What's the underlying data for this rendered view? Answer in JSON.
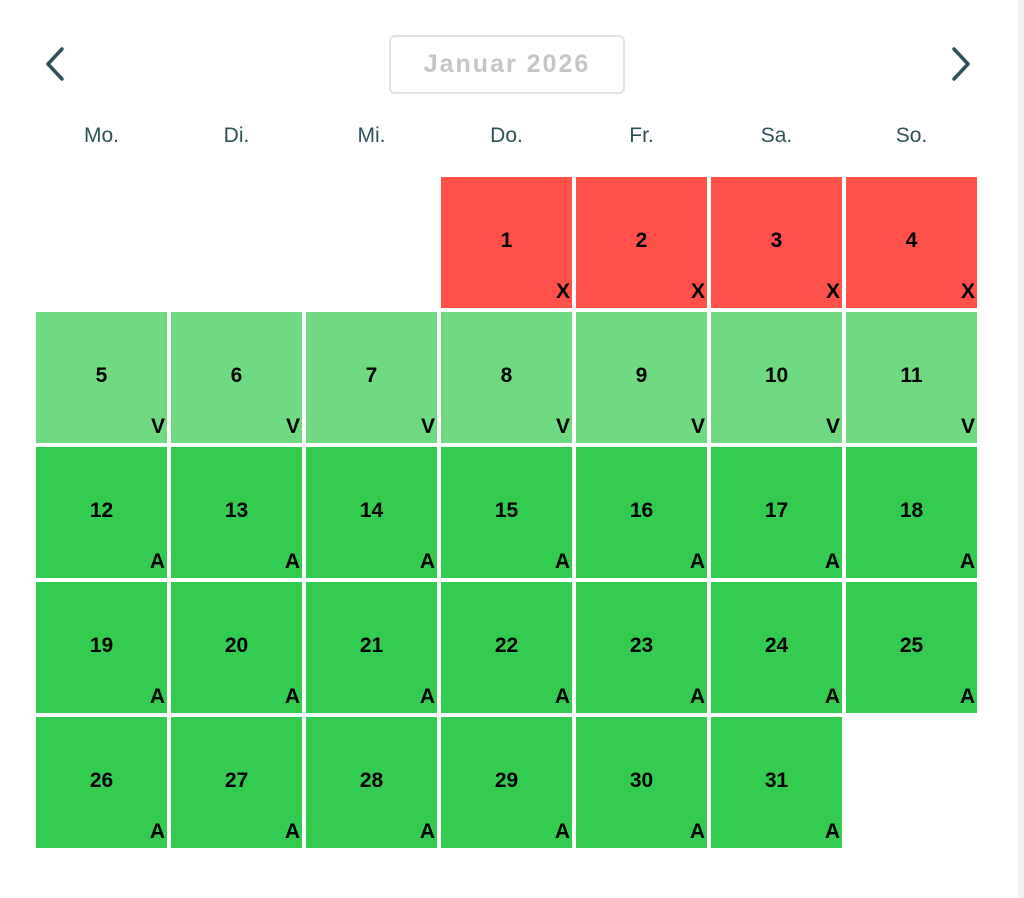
{
  "calendar": {
    "month_label": "Januar 2026",
    "weekdays": [
      "Mo.",
      "Di.",
      "Mi.",
      "Do.",
      "Fr.",
      "Sa.",
      "So."
    ],
    "leading_blank_days": 3,
    "colors": {
      "X": "#ff5149",
      "V": "#6fda80",
      "A": "#34cc50",
      "nav_arrow": "#2e5157",
      "weekday_text": "#2e5157",
      "month_label_text": "#c5c5c5"
    },
    "days": [
      {
        "day": "1",
        "status": "X"
      },
      {
        "day": "2",
        "status": "X"
      },
      {
        "day": "3",
        "status": "X"
      },
      {
        "day": "4",
        "status": "X"
      },
      {
        "day": "5",
        "status": "V"
      },
      {
        "day": "6",
        "status": "V"
      },
      {
        "day": "7",
        "status": "V"
      },
      {
        "day": "8",
        "status": "V"
      },
      {
        "day": "9",
        "status": "V"
      },
      {
        "day": "10",
        "status": "V"
      },
      {
        "day": "11",
        "status": "V"
      },
      {
        "day": "12",
        "status": "A"
      },
      {
        "day": "13",
        "status": "A"
      },
      {
        "day": "14",
        "status": "A"
      },
      {
        "day": "15",
        "status": "A"
      },
      {
        "day": "16",
        "status": "A"
      },
      {
        "day": "17",
        "status": "A"
      },
      {
        "day": "18",
        "status": "A"
      },
      {
        "day": "19",
        "status": "A"
      },
      {
        "day": "20",
        "status": "A"
      },
      {
        "day": "21",
        "status": "A"
      },
      {
        "day": "22",
        "status": "A"
      },
      {
        "day": "23",
        "status": "A"
      },
      {
        "day": "24",
        "status": "A"
      },
      {
        "day": "25",
        "status": "A"
      },
      {
        "day": "26",
        "status": "A"
      },
      {
        "day": "27",
        "status": "A"
      },
      {
        "day": "28",
        "status": "A"
      },
      {
        "day": "29",
        "status": "A"
      },
      {
        "day": "30",
        "status": "A"
      },
      {
        "day": "31",
        "status": "A"
      }
    ]
  }
}
